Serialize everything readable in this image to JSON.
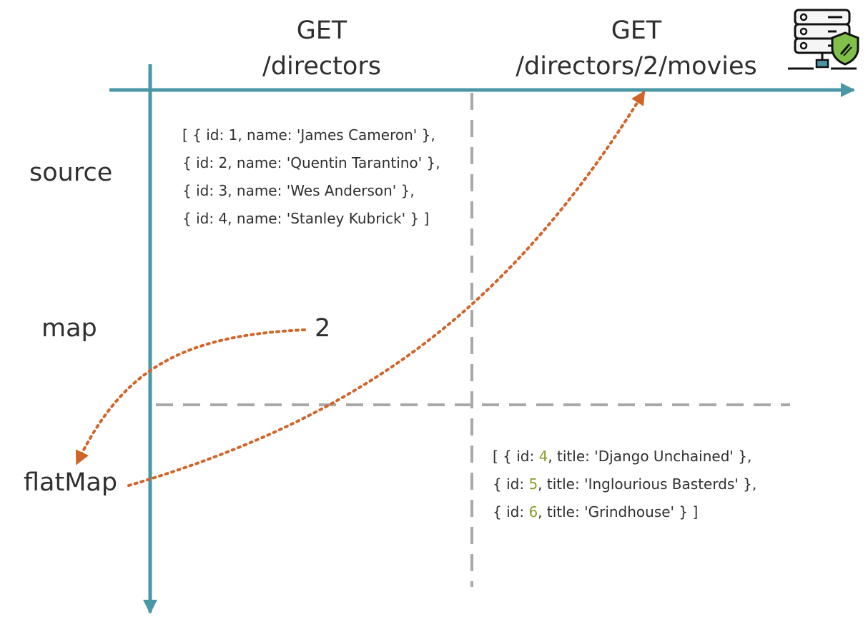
{
  "headers": {
    "col1_method": "GET",
    "col1_path": "/directors",
    "col2_method": "GET",
    "col2_path": "/directors/2/movies"
  },
  "rows": {
    "source": "source",
    "map": "map",
    "flatmap": "flatMap"
  },
  "map_value": "2",
  "directors": [
    {
      "prefix": "[ { id: ",
      "id": "1",
      "mid": ", name: ",
      "name": "'James Cameron'",
      "suffix": " },"
    },
    {
      "prefix": "{ id: ",
      "id": "2",
      "mid": ", name: ",
      "name": "'Quentin Tarantino'",
      "suffix": " },"
    },
    {
      "prefix": "{ id: ",
      "id": "3",
      "mid": ", name: ",
      "name": "'Wes Anderson'",
      "suffix": " },"
    },
    {
      "prefix": "{ id: ",
      "id": "4",
      "mid": ", name: ",
      "name": "'Stanley Kubrick'",
      "suffix": " } ]"
    }
  ],
  "movies": [
    {
      "prefix": "[ { id: ",
      "id": "4",
      "mid": ", title: ",
      "title": "'Django Unchained'",
      "suffix": " },"
    },
    {
      "prefix": "{ id: ",
      "id": "5",
      "mid": ", title: ",
      "title": "'Inglourious Basterds'",
      "suffix": " },"
    },
    {
      "prefix": "{ id: ",
      "id": "6",
      "mid": ", title: ",
      "title": "'Grindhouse'",
      "suffix": " } ]"
    }
  ],
  "icons": {
    "server": "server-shield-icon"
  },
  "colors": {
    "axis": "#4a97a6",
    "arrow": "#d0652a",
    "divider": "#a8a8a8",
    "id_highlight": "#8a9a2a"
  }
}
